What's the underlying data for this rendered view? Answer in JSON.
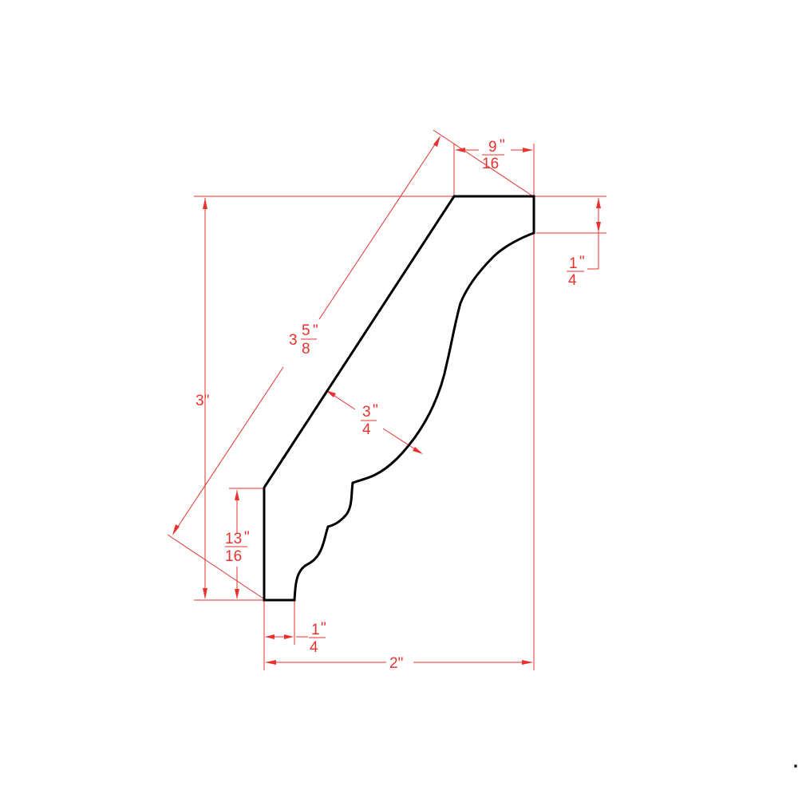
{
  "colors": {
    "dimension": "#e8322e",
    "profile": "#000000",
    "background": "#ffffff"
  },
  "dimensions": {
    "top_width": {
      "numerator": "9",
      "denominator": "16",
      "inch": "\""
    },
    "top_drop": {
      "numerator": "1",
      "denominator": "4",
      "inch": "\""
    },
    "diagonal": {
      "whole": "3",
      "numerator": "5",
      "denominator": "8",
      "inch": "\""
    },
    "height": {
      "text": "3\""
    },
    "thickness": {
      "numerator": "3",
      "denominator": "4",
      "inch": "\""
    },
    "bottom_height": {
      "numerator": "13",
      "denominator": "16",
      "inch": "\""
    },
    "bottom_offset": {
      "numerator": "1",
      "denominator": "4",
      "inch": "\""
    },
    "overall_width": {
      "text": "2\""
    }
  }
}
